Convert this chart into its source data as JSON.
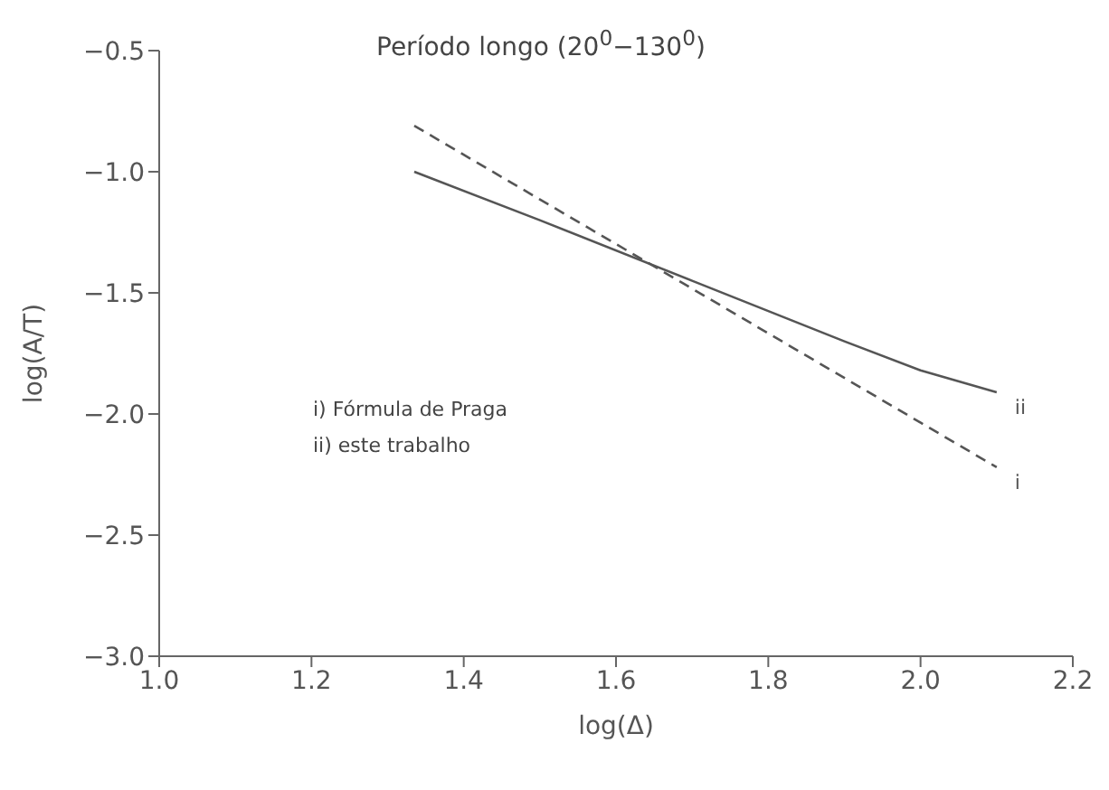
{
  "chart_data": {
    "type": "line",
    "title": "Período longo (20$^{0}$−130$^{0}$)",
    "xlabel": "log(Δ)",
    "ylabel": "log(A/T)",
    "xlim": [
      1.0,
      2.2
    ],
    "xticks": [
      {
        "value": 1.0,
        "label": "1.0"
      },
      {
        "value": 1.2,
        "label": "1.2"
      },
      {
        "value": 1.4,
        "label": "1.4"
      },
      {
        "value": 1.6,
        "label": "1.6"
      },
      {
        "value": 1.8,
        "label": "1.8"
      },
      {
        "value": 2.0,
        "label": "2.0"
      },
      {
        "value": 2.2,
        "label": "2.2"
      }
    ],
    "ylim": [
      -3.0,
      -0.5
    ],
    "yticks": [
      {
        "value": -3.0,
        "label": "−3.0"
      },
      {
        "value": -2.5,
        "label": "−2.5"
      },
      {
        "value": -2.0,
        "label": "−2.0"
      },
      {
        "value": -1.5,
        "label": "−1.5"
      },
      {
        "value": -1.0,
        "label": "−1.0"
      },
      {
        "value": -0.5,
        "label": "−0.5"
      }
    ],
    "grid": false,
    "legend": false,
    "marker": "none",
    "series": [
      {
        "name": "i",
        "color": "#555555",
        "line_style": "dashed",
        "x": [
          1.335,
          2.1
        ],
        "values": [
          -0.81,
          -2.22
        ]
      },
      {
        "name": "ii",
        "color": "#555555",
        "line_style": "solid",
        "x": [
          1.335,
          1.5,
          1.7,
          1.9,
          2.0,
          2.1
        ],
        "values": [
          -1.0,
          -1.2,
          -1.45,
          -1.7,
          -1.82,
          -1.91
        ]
      }
    ],
    "annotations": [
      "i) Fórmula de Praga",
      "ii) este trabalho"
    ]
  }
}
